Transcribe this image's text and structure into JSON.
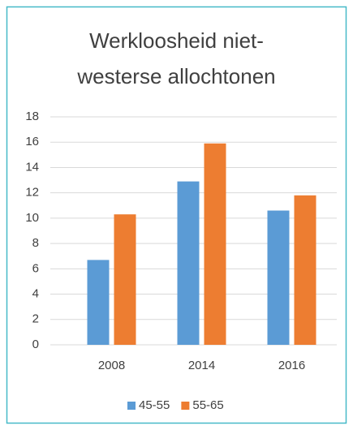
{
  "chart_data": {
    "type": "bar",
    "title": "Werkloosheid niet-westerse allochtonen",
    "categories": [
      "2008",
      "2014",
      "2016"
    ],
    "series": [
      {
        "name": "45-55",
        "color": "#5b9bd5",
        "values": [
          6.7,
          12.9,
          10.6
        ]
      },
      {
        "name": "55-65",
        "color": "#ed7d31",
        "values": [
          10.3,
          15.9,
          11.8
        ]
      }
    ],
    "ylim": [
      0,
      18
    ],
    "yticks": [
      0,
      2,
      4,
      6,
      8,
      10,
      12,
      14,
      16,
      18
    ],
    "grid": true,
    "legend": "bottom"
  }
}
